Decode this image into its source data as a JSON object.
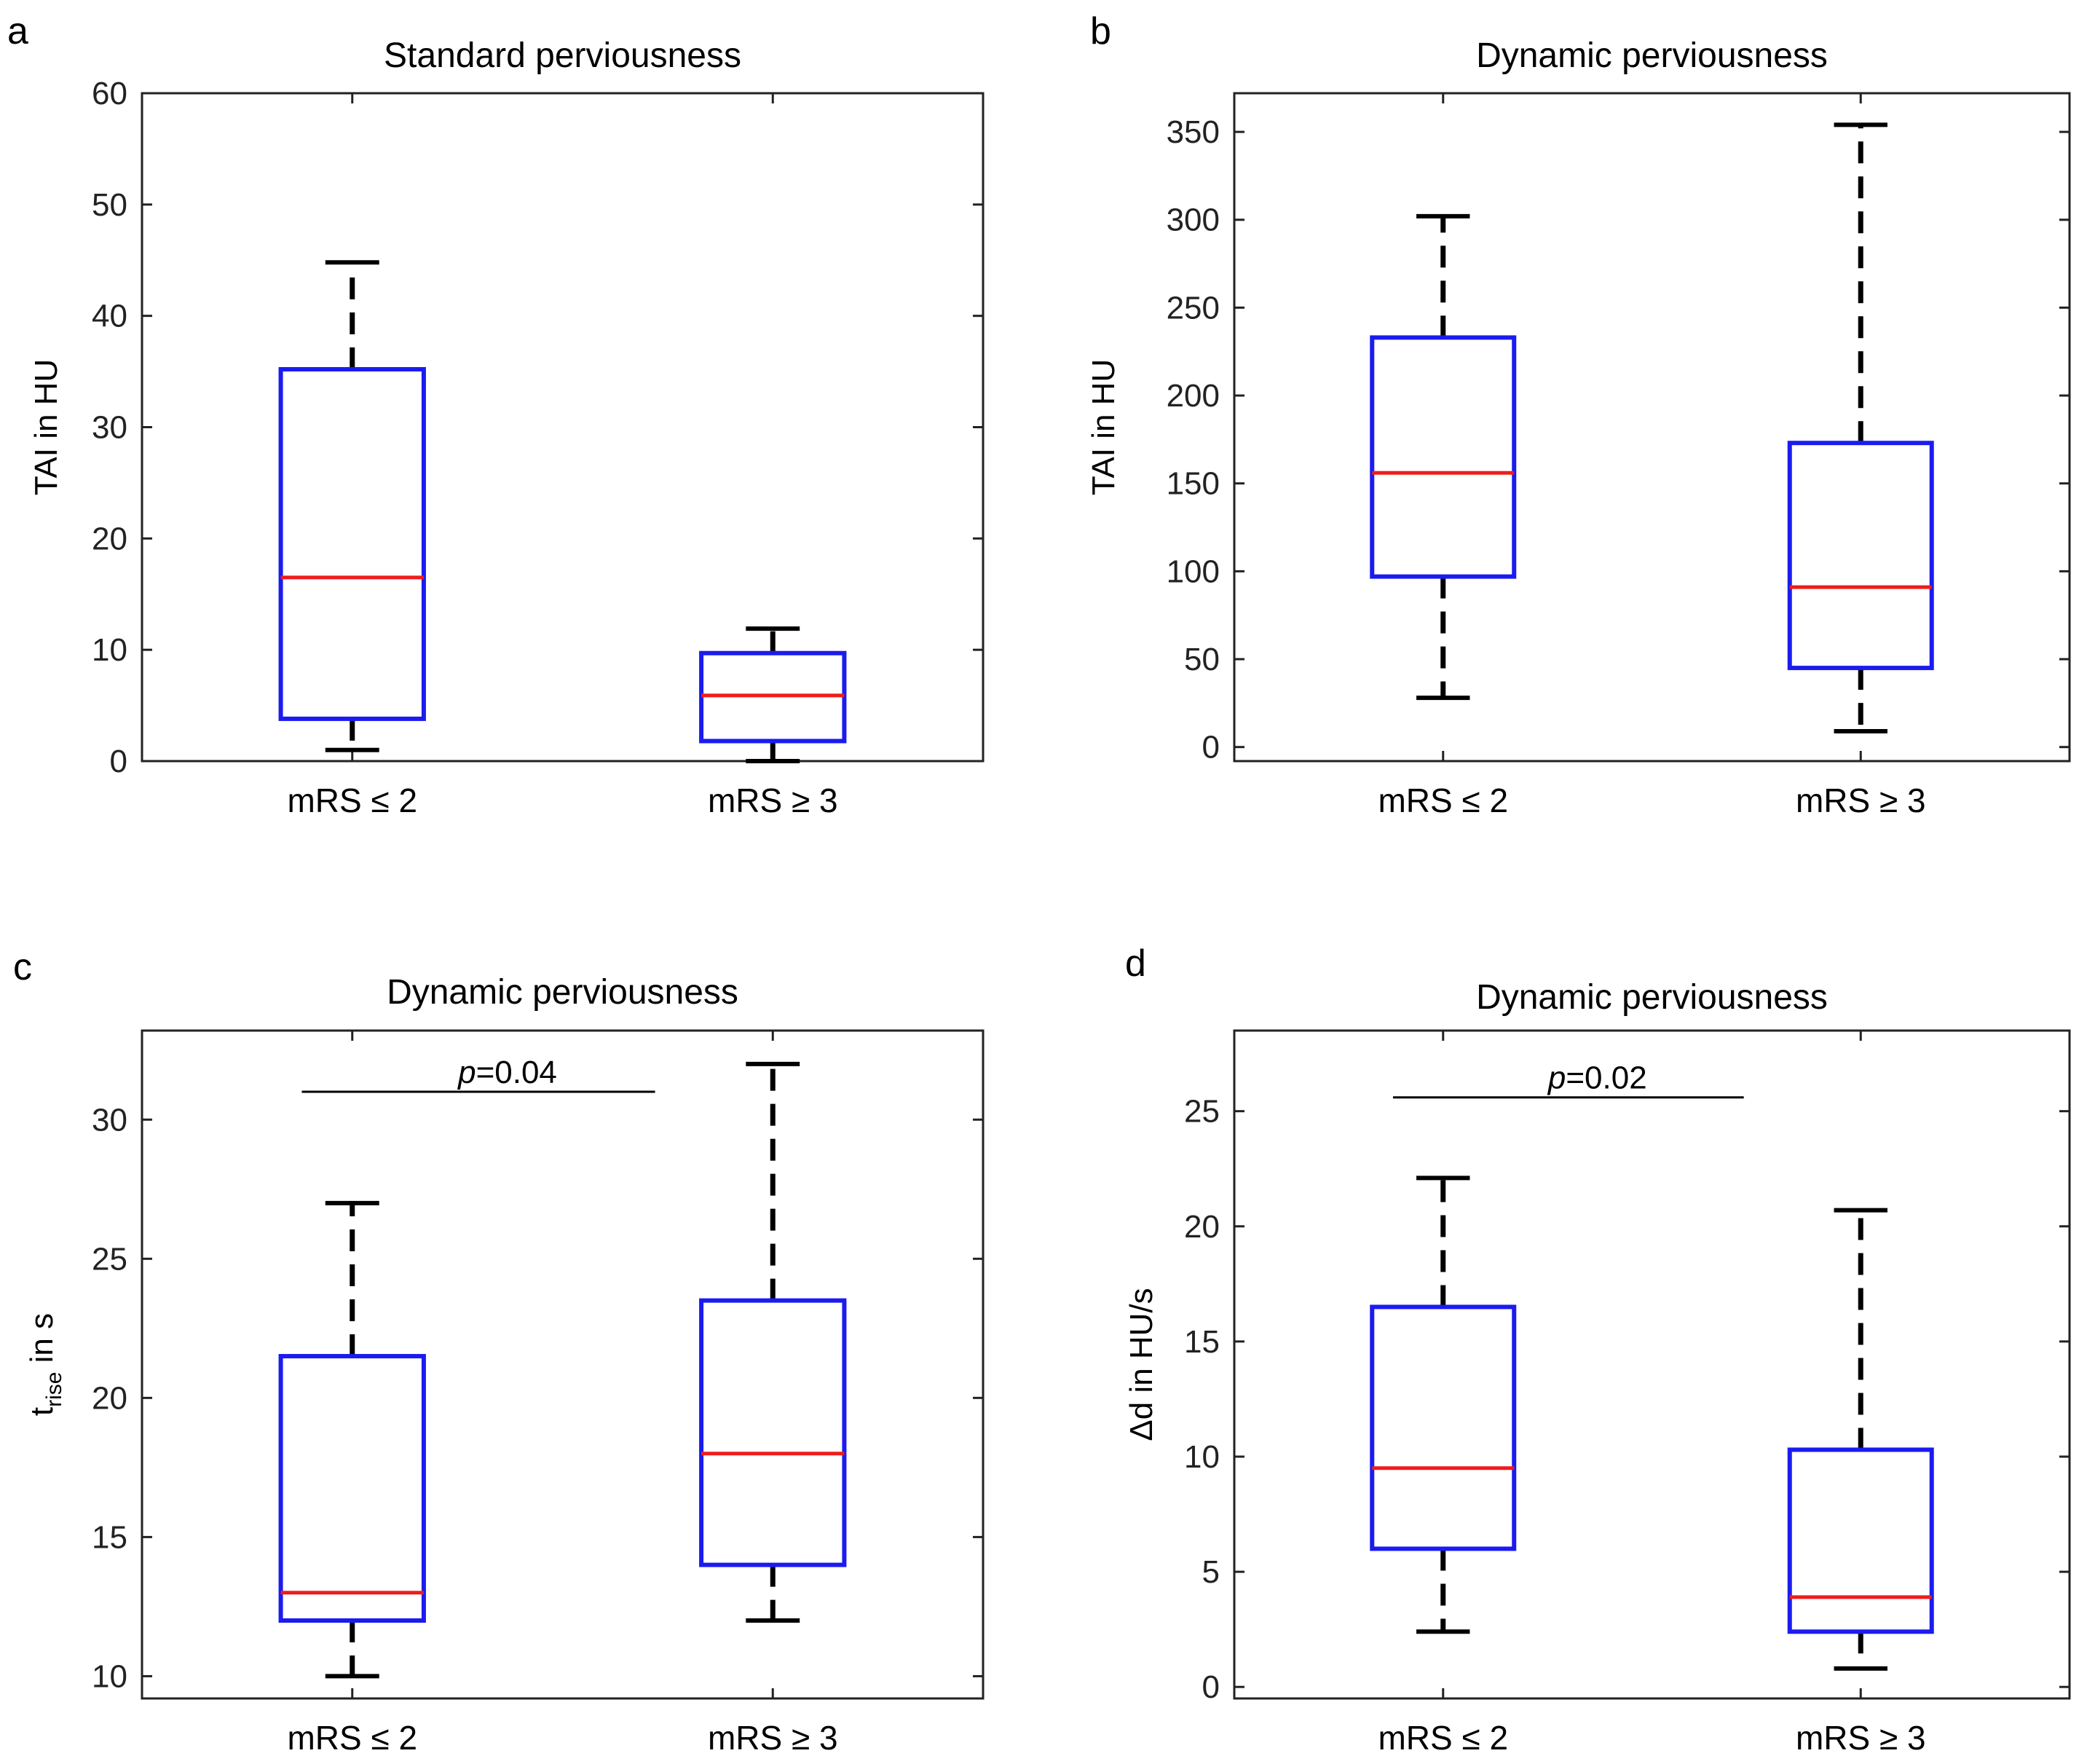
{
  "chart_data": [
    {
      "type": "boxplot",
      "panel": "a",
      "title": "Standard perviousness",
      "ylabel": "TAI in HU",
      "ylim": [
        0,
        60
      ],
      "yticks": [
        0,
        10,
        20,
        30,
        40,
        50,
        60
      ],
      "categories": [
        "mRS ≤ 2",
        "mRS ≥ 3"
      ],
      "boxes": [
        {
          "min": 1,
          "q1": 3.8,
          "median": 16.5,
          "q3": 35.2,
          "max": 44.8
        },
        {
          "min": 0,
          "q1": 1.8,
          "median": 5.9,
          "q3": 9.7,
          "max": 11.9
        }
      ]
    },
    {
      "type": "boxplot",
      "panel": "b",
      "title": "Dynamic perviousness",
      "ylabel": "TAI in HU",
      "ylim": [
        -8,
        372
      ],
      "yticks": [
        0,
        50,
        100,
        150,
        200,
        250,
        300,
        350
      ],
      "categories": [
        "mRS ≤ 2",
        "mRS ≥ 3"
      ],
      "boxes": [
        {
          "min": 28,
          "q1": 97,
          "median": 156,
          "q3": 233,
          "max": 302
        },
        {
          "min": 9,
          "q1": 45,
          "median": 91,
          "q3": 173,
          "max": 354
        }
      ]
    },
    {
      "type": "boxplot",
      "panel": "c",
      "title": "Dynamic perviousness",
      "ylabel_main": "t",
      "ylabel_sub": "rise",
      "ylabel_rest": " in s",
      "ylim": [
        9.2,
        33.2
      ],
      "yticks": [
        10,
        15,
        20,
        25,
        30
      ],
      "categories": [
        "mRS ≤ 2",
        "mRS ≥ 3"
      ],
      "boxes": [
        {
          "min": 10,
          "q1": 12,
          "median": 13,
          "q3": 21.5,
          "max": 27
        },
        {
          "min": 12,
          "q1": 14,
          "median": 18,
          "q3": 23.5,
          "max": 32
        }
      ],
      "annotation": {
        "p_label": "p",
        "p_value": "=0.04",
        "y_level": 31
      }
    },
    {
      "type": "boxplot",
      "panel": "d",
      "title": "Dynamic perviousness",
      "ylabel": "Δd in HU/s",
      "ylim": [
        -0.5,
        28.5
      ],
      "yticks": [
        0,
        5,
        10,
        15,
        20,
        25
      ],
      "categories": [
        "mRS ≤ 2",
        "mRS ≥ 3"
      ],
      "boxes": [
        {
          "min": 2.4,
          "q1": 6,
          "median": 9.5,
          "q3": 16.5,
          "max": 22.1
        },
        {
          "min": 0.8,
          "q1": 2.4,
          "median": 3.9,
          "q3": 10.3,
          "max": 20.7
        }
      ],
      "annotation": {
        "p_label": "p",
        "p_value": "=0.02",
        "y_level": 25.6
      }
    }
  ],
  "colors": {
    "box": "#1b1bf0",
    "median": "#ef1c1c",
    "whisker": "#000000",
    "axis": "#222222"
  }
}
